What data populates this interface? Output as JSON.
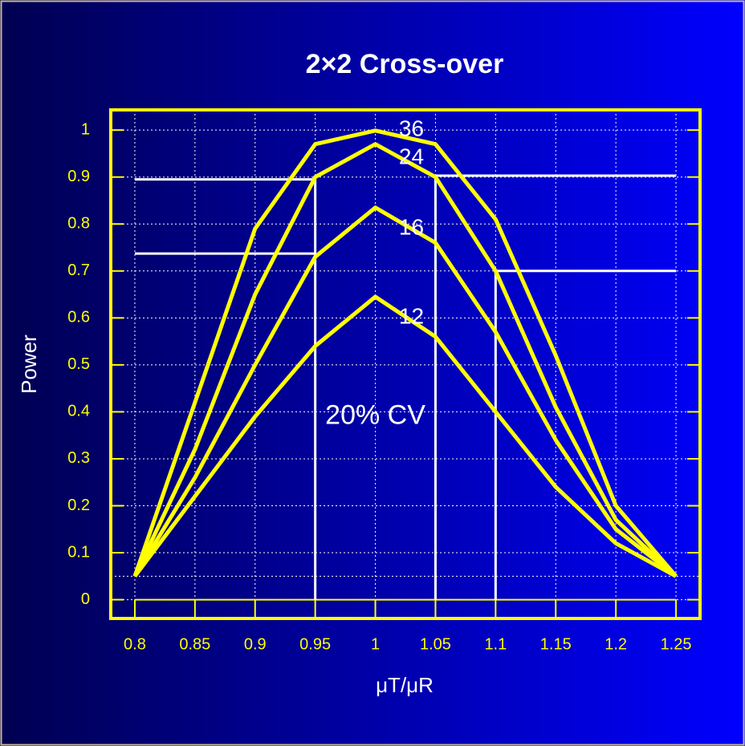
{
  "chart_data": {
    "type": "line",
    "title": "2×2 Cross-over",
    "x_label": "μT/μR",
    "y_label": "Power",
    "x": [
      0.8,
      0.85,
      0.9,
      0.95,
      1.0,
      1.05,
      1.1,
      1.15,
      1.2,
      1.25
    ],
    "series": [
      {
        "name": "36",
        "color": "#ffff00",
        "values": [
          0.05,
          0.42,
          0.79,
          0.97,
          0.999,
          0.97,
          0.81,
          0.52,
          0.2,
          0.05
        ]
      },
      {
        "name": "24",
        "color": "#ffff00",
        "values": [
          0.05,
          0.32,
          0.65,
          0.9,
          0.97,
          0.9,
          0.7,
          0.41,
          0.17,
          0.05
        ]
      },
      {
        "name": "16",
        "color": "#ffff00",
        "values": [
          0.05,
          0.26,
          0.5,
          0.73,
          0.835,
          0.76,
          0.57,
          0.34,
          0.15,
          0.05
        ]
      },
      {
        "name": "12",
        "color": "#ffff00",
        "values": [
          0.05,
          0.22,
          0.39,
          0.54,
          0.645,
          0.56,
          0.4,
          0.24,
          0.12,
          0.05
        ]
      }
    ],
    "series_label_x": 1.03,
    "series_label_y": [
      1.0,
      0.94,
      0.79,
      0.6
    ],
    "annotations": [
      {
        "text": "20% CV",
        "x": 1.0,
        "y": 0.39
      }
    ],
    "reference_lines": [
      {
        "x": [
          0.8,
          0.95
        ],
        "y": [
          0.895,
          0.895
        ]
      },
      {
        "x": [
          0.8,
          0.95
        ],
        "y": [
          0.737,
          0.737
        ]
      },
      {
        "x": [
          0.95,
          0.95
        ],
        "y": [
          0,
          0.895
        ]
      },
      {
        "x": [
          1.05,
          1.05
        ],
        "y": [
          0,
          0.903
        ]
      },
      {
        "x": [
          1.05,
          1.25
        ],
        "y": [
          0.903,
          0.903
        ]
      },
      {
        "x": [
          1.1,
          1.1
        ],
        "y": [
          0,
          0.7
        ]
      },
      {
        "x": [
          1.1,
          1.25
        ],
        "y": [
          0.7,
          0.7
        ]
      }
    ],
    "alpha_line": 0.05,
    "xlim": [
      0.78,
      1.27
    ],
    "ylim": [
      -0.04,
      1.043
    ],
    "xticks": [
      0.8,
      0.85,
      0.9,
      0.95,
      1,
      1.05,
      1.1,
      1.15,
      1.2,
      1.25
    ],
    "yticks": [
      0,
      0.1,
      0.2,
      0.3,
      0.4,
      0.5,
      0.6,
      0.7,
      0.8,
      0.9,
      1
    ],
    "grid": true
  }
}
